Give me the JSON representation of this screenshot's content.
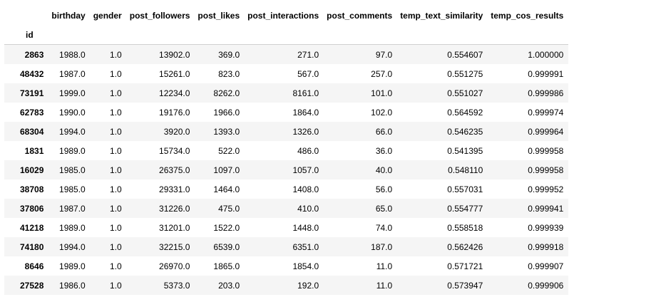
{
  "table": {
    "index_name": "id",
    "columns": [
      "birthday",
      "gender",
      "post_followers",
      "post_likes",
      "post_interactions",
      "post_comments",
      "temp_text_similarity",
      "temp_cos_results"
    ],
    "rows": [
      {
        "id": "2863",
        "cells": [
          "1988.0",
          "1.0",
          "13902.0",
          "369.0",
          "271.0",
          "97.0",
          "0.554607",
          "1.000000"
        ]
      },
      {
        "id": "48432",
        "cells": [
          "1987.0",
          "1.0",
          "15261.0",
          "823.0",
          "567.0",
          "257.0",
          "0.551275",
          "0.999991"
        ]
      },
      {
        "id": "73191",
        "cells": [
          "1999.0",
          "1.0",
          "12234.0",
          "8262.0",
          "8161.0",
          "101.0",
          "0.551027",
          "0.999986"
        ]
      },
      {
        "id": "62783",
        "cells": [
          "1990.0",
          "1.0",
          "19176.0",
          "1966.0",
          "1864.0",
          "102.0",
          "0.564592",
          "0.999974"
        ]
      },
      {
        "id": "68304",
        "cells": [
          "1994.0",
          "1.0",
          "3920.0",
          "1393.0",
          "1326.0",
          "66.0",
          "0.546235",
          "0.999964"
        ]
      },
      {
        "id": "1831",
        "cells": [
          "1989.0",
          "1.0",
          "15734.0",
          "522.0",
          "486.0",
          "36.0",
          "0.541395",
          "0.999958"
        ]
      },
      {
        "id": "16029",
        "cells": [
          "1985.0",
          "1.0",
          "26375.0",
          "1097.0",
          "1057.0",
          "40.0",
          "0.548110",
          "0.999958"
        ]
      },
      {
        "id": "38708",
        "cells": [
          "1985.0",
          "1.0",
          "29331.0",
          "1464.0",
          "1408.0",
          "56.0",
          "0.557031",
          "0.999952"
        ]
      },
      {
        "id": "37806",
        "cells": [
          "1987.0",
          "1.0",
          "31226.0",
          "475.0",
          "410.0",
          "65.0",
          "0.554777",
          "0.999941"
        ]
      },
      {
        "id": "41218",
        "cells": [
          "1989.0",
          "1.0",
          "31201.0",
          "1522.0",
          "1448.0",
          "74.0",
          "0.558518",
          "0.999939"
        ]
      },
      {
        "id": "74180",
        "cells": [
          "1994.0",
          "1.0",
          "32215.0",
          "6539.0",
          "6351.0",
          "187.0",
          "0.562426",
          "0.999918"
        ]
      },
      {
        "id": "8646",
        "cells": [
          "1989.0",
          "1.0",
          "26970.0",
          "1865.0",
          "1854.0",
          "11.0",
          "0.571721",
          "0.999907"
        ]
      },
      {
        "id": "27528",
        "cells": [
          "1986.0",
          "1.0",
          "5373.0",
          "203.0",
          "192.0",
          "11.0",
          "0.573947",
          "0.999906"
        ]
      }
    ]
  }
}
